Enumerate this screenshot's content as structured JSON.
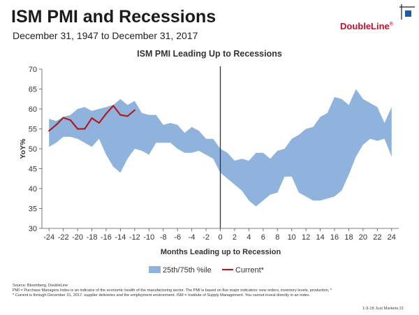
{
  "header": {
    "title": "ISM PMI and Recessions",
    "subtitle": "December 31, 1947 to December 31, 2017",
    "logo": "DoubleLine",
    "logo_mark": "®"
  },
  "colors": {
    "band": "#8fb3dd",
    "current": "#b01c25",
    "axis": "#555555",
    "recession_line": "#333333"
  },
  "chart_data": {
    "type": "area",
    "title": "ISM PMI Leading Up to Recessions",
    "xlabel": "Months Leading up to Recession",
    "ylabel": "YoY%",
    "xlim": [
      -25,
      25
    ],
    "ylim": [
      30,
      70
    ],
    "x_ticks": [
      -24,
      -22,
      -20,
      -18,
      -16,
      -14,
      -12,
      -10,
      -8,
      -6,
      -4,
      -2,
      0,
      2,
      4,
      6,
      8,
      10,
      12,
      14,
      16,
      18,
      20,
      22,
      24
    ],
    "y_ticks": [
      30,
      35,
      40,
      45,
      50,
      55,
      60,
      65,
      70
    ],
    "x_tick_labels": [
      "-24",
      "-22",
      "-20",
      "-18",
      "-16",
      "-14",
      "-12",
      "-10",
      "-8",
      "-6",
      "-4",
      "-2",
      "0",
      "2",
      "4",
      "6",
      "8",
      "10",
      "12",
      "14",
      "16",
      "18",
      "20",
      "22",
      "24"
    ],
    "y_tick_labels": [
      "30",
      "35",
      "40",
      "45",
      "50",
      "55",
      "60",
      "65",
      "70"
    ],
    "vertical_marker_x": 0,
    "legend_position": "bottom",
    "band": {
      "name": "25th/75th %ile",
      "x": [
        -24,
        -23,
        -22,
        -21,
        -20,
        -19,
        -18,
        -17,
        -16,
        -15,
        -14,
        -13,
        -12,
        -11,
        -10,
        -9,
        -8,
        -7,
        -6,
        -5,
        -4,
        -3,
        -2,
        -1,
        0,
        1,
        2,
        3,
        4,
        5,
        6,
        7,
        8,
        9,
        10,
        11,
        12,
        13,
        14,
        15,
        16,
        17,
        18,
        19,
        20,
        21,
        22,
        23,
        24
      ],
      "upper": [
        57.5,
        57,
        58,
        58.5,
        60,
        60.5,
        59.5,
        60,
        60.5,
        61,
        62.5,
        61,
        62,
        59,
        58.5,
        58.5,
        56,
        56.5,
        56,
        54,
        55.5,
        54.5,
        52.5,
        52.5,
        50,
        49,
        47,
        47.5,
        47,
        49,
        49,
        47.5,
        49.5,
        50,
        52.5,
        53.5,
        55,
        55.5,
        58,
        59,
        63,
        62.5,
        61,
        65,
        62.5,
        61.5,
        60.5,
        56.5,
        60.5
      ],
      "lower": [
        50.5,
        51.5,
        53,
        53,
        52.5,
        51.5,
        50.5,
        52.5,
        48.5,
        45.5,
        44,
        47.5,
        50,
        49.5,
        48.5,
        51.5,
        51.5,
        51.5,
        50,
        49,
        49,
        49.5,
        48.5,
        47.5,
        44,
        42.5,
        41,
        39.5,
        37,
        35.5,
        37,
        38.5,
        39,
        43,
        43,
        39,
        38,
        37,
        37,
        37.5,
        38,
        39.5,
        43.5,
        48,
        51,
        52.5,
        52,
        52.5,
        48
      ]
    },
    "series": [
      {
        "name": "Current*",
        "x": [
          -24,
          -23,
          -22,
          -21,
          -20,
          -19,
          -18,
          -17,
          -16,
          -15,
          -14,
          -13,
          -12
        ],
        "values": [
          54.5,
          56,
          57.8,
          57.2,
          55,
          55,
          57.7,
          56.5,
          58.8,
          60.8,
          58.5,
          58.2,
          59.7
        ]
      }
    ]
  },
  "footnotes": {
    "source": "Source: Bloomberg, DoubleLine",
    "line1": "PMI = Purchase Managers Index is an indicator of the economic health of the manufacturing sector. The PMI is based on five major indicators: new orders, inventory levels, production, *",
    "line2": "* Current is through December 31, 2017. supplier deliveries and the employment environment. ISM = Institute of Supply Management. You cannot invest directly in an index."
  },
  "footer": {
    "page": "1-9-18 Just Markets 21"
  }
}
